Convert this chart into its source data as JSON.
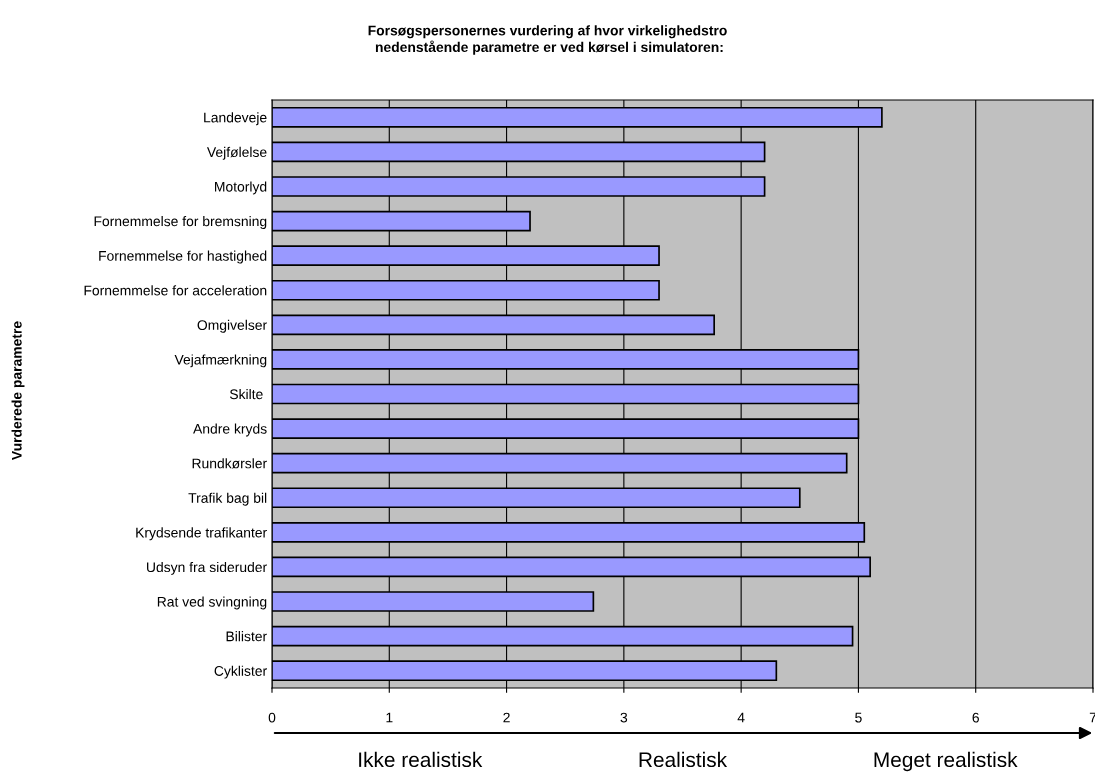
{
  "chart_data": {
    "type": "bar",
    "orientation": "horizontal",
    "title": "Forsøgspersonernes vurdering af hvor virkelighedstro\n nedenstående parametre er ved kørsel i simulatoren:",
    "ylabel": "Vurderede parametre",
    "categories": [
      "Landeveje",
      "Vejfølelse",
      "Motorlyd",
      "Fornemmelse for bremsning",
      "Fornemmelse for hastighed",
      "Fornemmelse for acceleration",
      "Omgivelser",
      "Vejafmærkning",
      "Skilte ",
      "Andre kryds",
      "Rundkørsler",
      "Trafik bag bil",
      "Krydsende trafikanter",
      "Udsyn fra sideruder",
      "Rat ved svingning",
      "Bilister",
      "Cyklister"
    ],
    "values": [
      5.2,
      4.2,
      4.2,
      2.2,
      3.3,
      3.3,
      3.77,
      5.0,
      5.0,
      5.0,
      4.9,
      4.5,
      5.05,
      5.1,
      2.74,
      4.95,
      4.3
    ],
    "color": "#9999ff",
    "xlim": [
      0,
      7
    ],
    "xticks": [
      0,
      1,
      2,
      3,
      4,
      5,
      6,
      7
    ],
    "grid": "x",
    "legend": false,
    "annotations": [
      "Ikke realistisk",
      "Realistisk",
      "Meget realistisk"
    ]
  }
}
